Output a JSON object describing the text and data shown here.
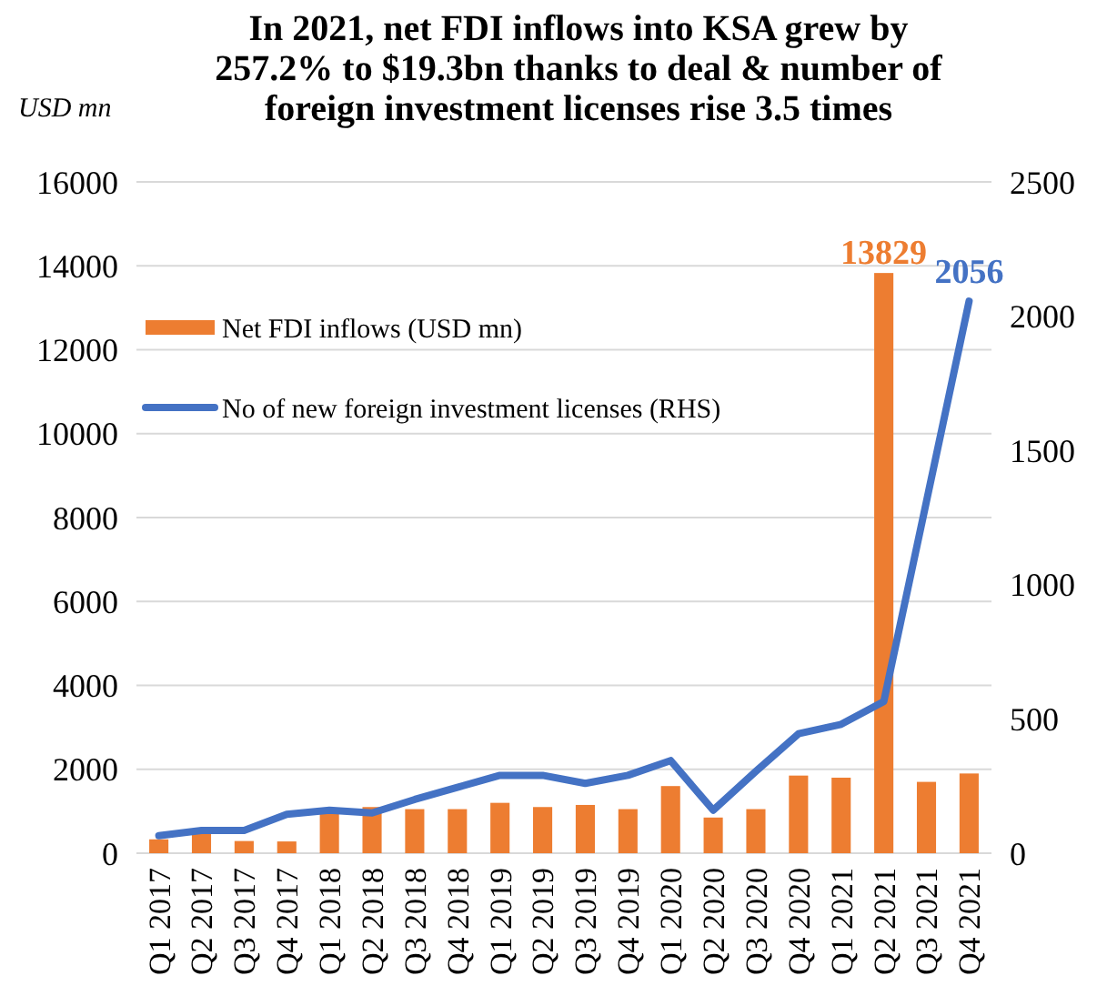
{
  "chart_data": {
    "type": "bar",
    "title": "In 2021, net FDI inflows into KSA grew by 257.2% to $19.3bn thanks to deal & number of foreign investment licenses rise 3.5 times",
    "ylabel": "USD mn",
    "categories": [
      "Q1 2017",
      "Q2 2017",
      "Q3 2017",
      "Q4 2017",
      "Q1 2018",
      "Q2 2018",
      "Q3 2018",
      "Q4 2018",
      "Q1 2019",
      "Q2 2019",
      "Q3 2019",
      "Q4 2019",
      "Q1 2020",
      "Q2 2020",
      "Q3 2020",
      "Q4 2020",
      "Q1 2021",
      "Q2 2021",
      "Q3 2021",
      "Q4 2021"
    ],
    "series": [
      {
        "name": "Net FDI inflows (USD mn)",
        "color": "#ed7d31",
        "values": [
          330,
          480,
          290,
          280,
          1000,
          1100,
          1050,
          1050,
          1200,
          1100,
          1150,
          1050,
          1600,
          850,
          1050,
          1850,
          1800,
          13829,
          1700,
          1900
        ],
        "value_labels": [
          null,
          null,
          null,
          null,
          null,
          null,
          null,
          null,
          null,
          null,
          null,
          null,
          null,
          null,
          null,
          null,
          null,
          "13829",
          null,
          null
        ]
      },
      {
        "name": "No of new foreign investment licenses (RHS)",
        "type": "line",
        "axis": "y2",
        "color": "#4472c4",
        "values": [
          65,
          85,
          85,
          145,
          160,
          150,
          200,
          245,
          290,
          290,
          260,
          290,
          345,
          160,
          305,
          445,
          480,
          565,
          1310,
          2056
        ],
        "value_labels": [
          null,
          null,
          null,
          null,
          null,
          null,
          null,
          null,
          null,
          null,
          null,
          null,
          null,
          null,
          null,
          null,
          null,
          null,
          null,
          "2056"
        ]
      }
    ],
    "ylim": [
      0,
      16000
    ],
    "yticks": [
      0,
      2000,
      4000,
      6000,
      8000,
      10000,
      12000,
      14000,
      16000
    ],
    "y2lim": [
      0,
      2500
    ],
    "y2ticks": [
      0,
      500,
      1000,
      1500,
      2000,
      2500
    ],
    "grid": "y",
    "legend": "top left",
    "marker": "none",
    "line_style": "solid"
  }
}
